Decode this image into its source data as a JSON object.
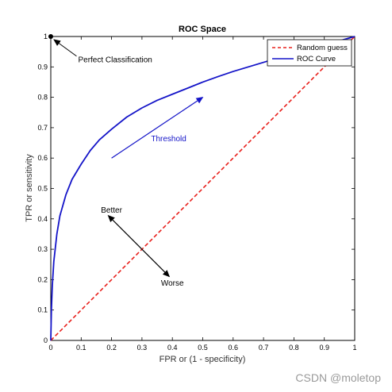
{
  "chart_data": {
    "type": "line",
    "title": "ROC Space",
    "xlabel": "FPR or (1 - specificity)",
    "ylabel": "TPR or sensitivity",
    "xlim": [
      0,
      1
    ],
    "ylim": [
      0,
      1
    ],
    "xticks": [
      "0",
      "0.1",
      "0.2",
      "0.3",
      "0.4",
      "0.5",
      "0.6",
      "0.7",
      "0.8",
      "0.9",
      "1"
    ],
    "yticks": [
      "0",
      "0.1",
      "0.2",
      "0.3",
      "0.4",
      "0.5",
      "0.6",
      "0.7",
      "0.8",
      "0.9",
      "1"
    ],
    "grid": false,
    "legend_position": "top-right",
    "series": [
      {
        "name": "Random guess",
        "style": "dashed",
        "color": "#e8201c",
        "x": [
          0,
          1
        ],
        "y": [
          0,
          1
        ]
      },
      {
        "name": "ROC Curve",
        "style": "solid",
        "color": "#1414c8",
        "x": [
          0,
          0.002,
          0.005,
          0.01,
          0.02,
          0.03,
          0.05,
          0.07,
          0.1,
          0.13,
          0.16,
          0.2,
          0.25,
          0.3,
          0.35,
          0.4,
          0.45,
          0.5,
          0.55,
          0.6,
          0.65,
          0.7,
          0.75,
          0.8,
          0.85,
          0.9,
          0.95,
          1.0
        ],
        "y": [
          0,
          0.1,
          0.18,
          0.26,
          0.35,
          0.41,
          0.48,
          0.53,
          0.58,
          0.625,
          0.66,
          0.695,
          0.735,
          0.765,
          0.79,
          0.81,
          0.83,
          0.85,
          0.868,
          0.885,
          0.9,
          0.915,
          0.93,
          0.945,
          0.958,
          0.972,
          0.986,
          1.0
        ]
      }
    ],
    "annotations": {
      "perfect": {
        "text": "Perfect Classification",
        "point": [
          0,
          1
        ],
        "text_at": [
          0.09,
          0.925
        ]
      },
      "threshold": {
        "text": "Threshold",
        "from": [
          0.2,
          0.6
        ],
        "to": [
          0.5,
          0.8
        ],
        "text_at": [
          0.33,
          0.655
        ],
        "color": "#1414c8"
      },
      "better": {
        "text": "Better",
        "text_at": [
          0.2,
          0.42
        ]
      },
      "worse": {
        "text": "Worse",
        "text_at": [
          0.4,
          0.18
        ]
      },
      "better_worse_arrow": {
        "from": [
          0.2,
          0.4
        ],
        "to": [
          0.39,
          0.21
        ]
      }
    }
  },
  "watermark": "CSDN @moletop"
}
